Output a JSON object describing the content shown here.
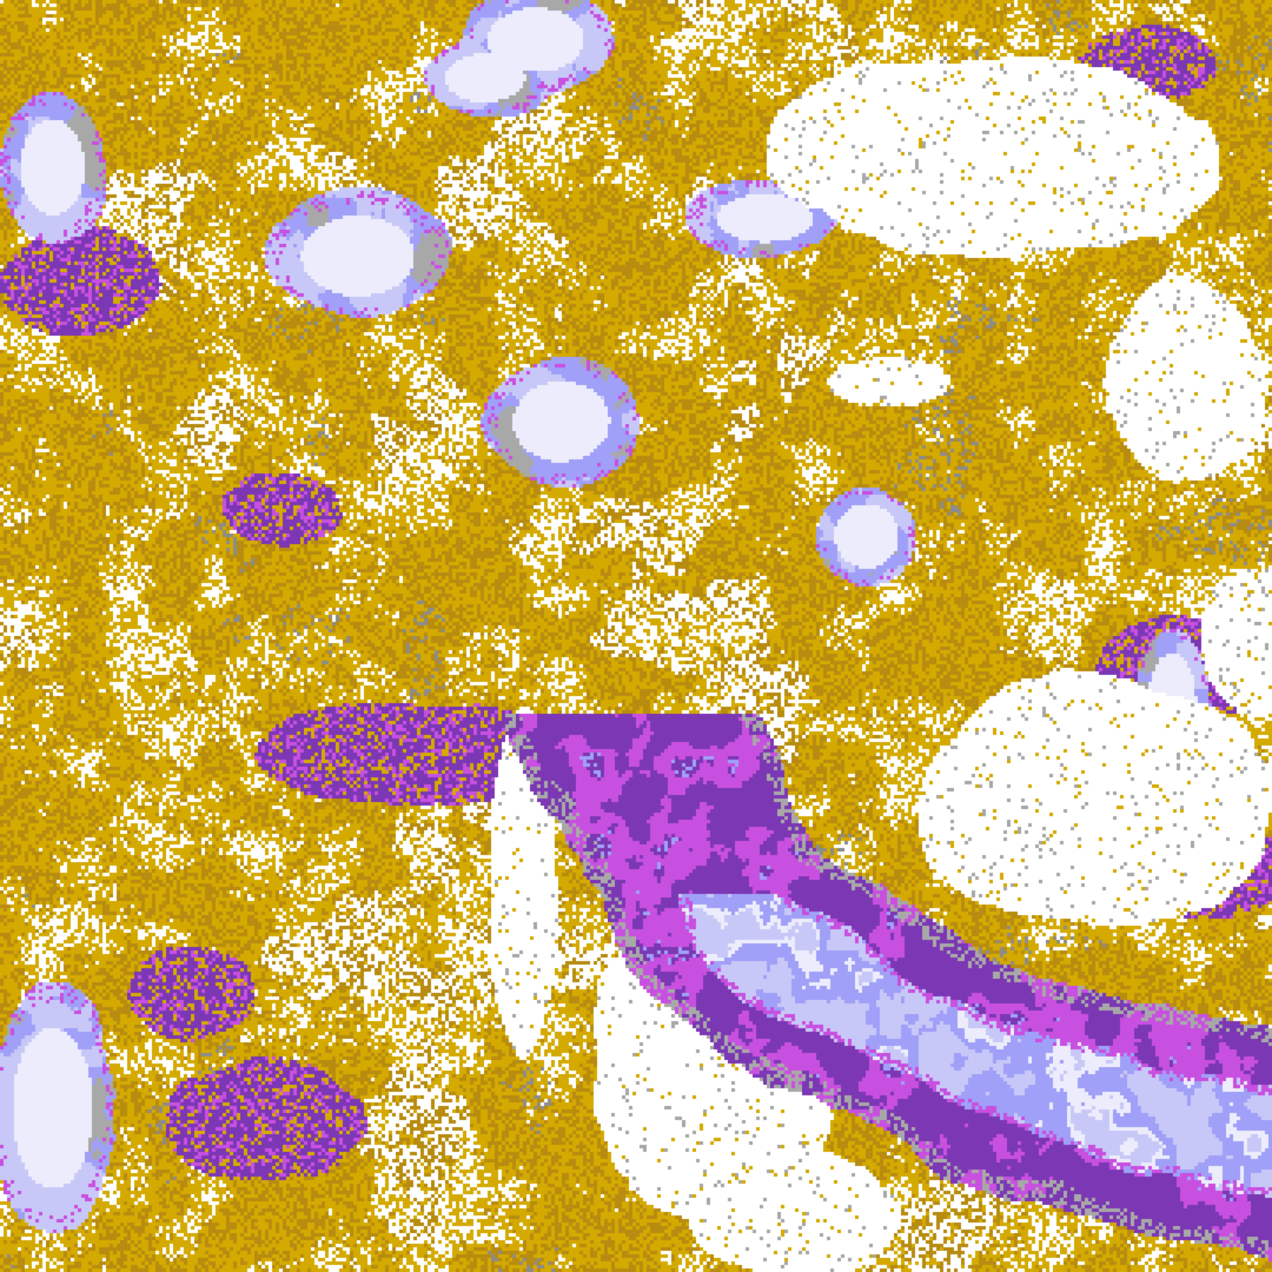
{
  "image": {
    "kind": "false-color satellite cloud imagery",
    "palette": {
      "clear": "#ffffff",
      "gold": "#d4aa00",
      "gold_dark": "#b88c10",
      "grey": "#a8a8a8",
      "grey_dark": "#8c8c8c",
      "purple": "#7c38b4",
      "magenta": "#c850e0",
      "lavender": "#a0a0f8",
      "lavender_light": "#c8c8f8",
      "pale": "#ececfc"
    }
  }
}
